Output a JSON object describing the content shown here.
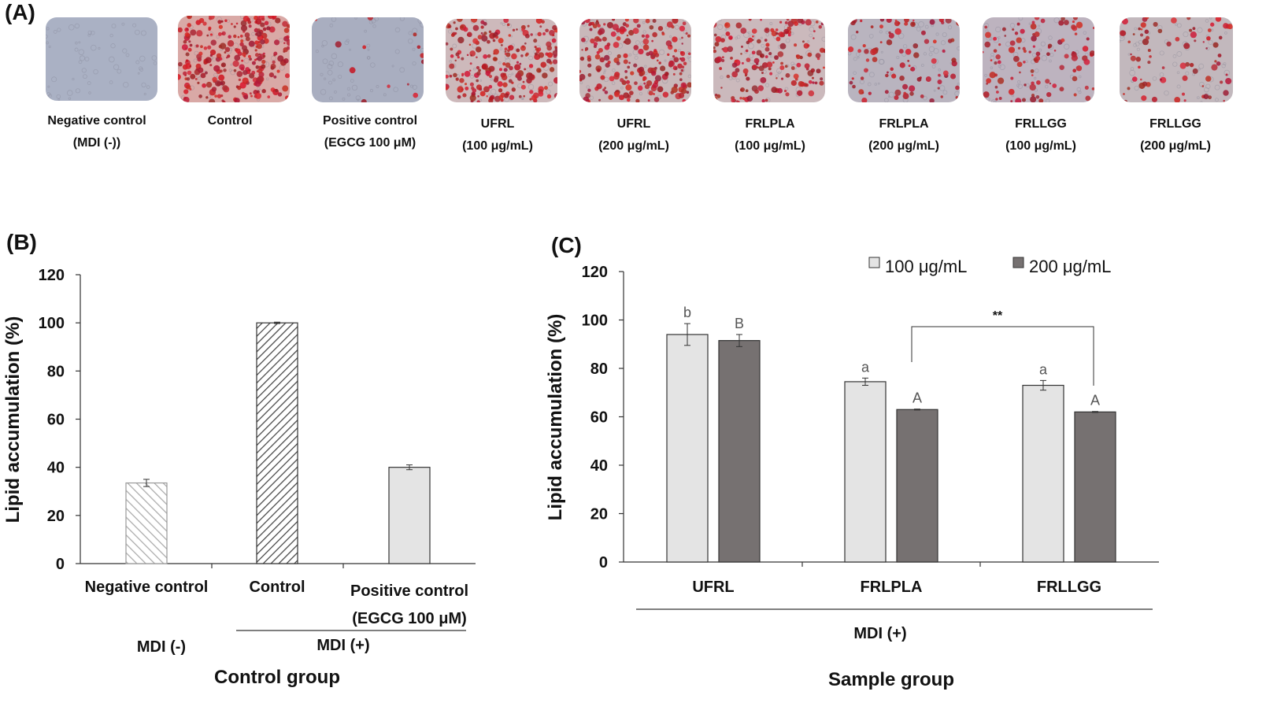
{
  "panel_a": {
    "letter": "(A)",
    "images": [
      {
        "line1": "Negative control",
        "line2": "(MDI (-))",
        "stain": 0.0,
        "base": "#aab1c4"
      },
      {
        "line1": "Control",
        "line2": "",
        "stain": 1.0,
        "base": "#d9a9a6"
      },
      {
        "line1": "Positive control",
        "line2": "(EGCG 100 μM)",
        "stain": 0.05,
        "base": "#a9aec0"
      },
      {
        "line1": "UFRL",
        "line2": "(100 μg/mL)",
        "stain": 0.85,
        "base": "#cdb9bb"
      },
      {
        "line1": "UFRL",
        "line2": "(200 μg/mL)",
        "stain": 0.8,
        "base": "#c9b8ba"
      },
      {
        "line1": "FRLPLA",
        "line2": "(100 μg/mL)",
        "stain": 0.65,
        "base": "#cbb9bc"
      },
      {
        "line1": "FRLPLA",
        "line2": "(200 μg/mL)",
        "stain": 0.35,
        "base": "#b9b4bf"
      },
      {
        "line1": "FRLLGG",
        "line2": "(100 μg/mL)",
        "stain": 0.4,
        "base": "#bdb3bf"
      },
      {
        "line1": "FRLLGG",
        "line2": "(200 μg/mL)",
        "stain": 0.3,
        "base": "#c2b8bd"
      }
    ]
  },
  "chart_data": [
    {
      "panel": "(B)",
      "type": "bar",
      "categories": [
        "Negative control",
        "Control",
        "Positive control"
      ],
      "category_sublabels": [
        "",
        "",
        "(EGCG 100 μM)"
      ],
      "values": [
        33.5,
        100,
        40
      ],
      "errors": [
        1.5,
        0.3,
        1.0
      ],
      "fills": [
        "hatch-light",
        "hatch-dark",
        "solid-light"
      ],
      "ylabel": "Lipid accumulation (%)",
      "ylim": [
        0,
        120
      ],
      "yticks": [
        0,
        20,
        40,
        60,
        80,
        100,
        120
      ],
      "group_labels": {
        "left": "MDI (-)",
        "right": "MDI (+)"
      },
      "xlabel": "Control group"
    },
    {
      "panel": "(C)",
      "type": "bar",
      "categories": [
        "UFRL",
        "FRLPLA",
        "FRLLGG"
      ],
      "series": [
        {
          "name": "100 μg/mL",
          "color": "#e4e4e4",
          "values": [
            94,
            74.5,
            73
          ],
          "errors": [
            4.5,
            1.5,
            2.0
          ],
          "letters": [
            "b",
            "a",
            "a"
          ]
        },
        {
          "name": "200 μg/mL",
          "color": "#767171",
          "values": [
            91.5,
            63,
            62
          ],
          "errors": [
            2.5,
            0.2,
            0.2
          ],
          "letters": [
            "B",
            "A",
            "A"
          ]
        }
      ],
      "ylabel": "Lipid accumulation (%)",
      "ylim": [
        0,
        120
      ],
      "yticks": [
        0,
        20,
        40,
        60,
        80,
        100,
        120
      ],
      "significance": "**",
      "group_label": "MDI (+)",
      "xlabel": "Sample group",
      "legend": "top-right"
    }
  ]
}
